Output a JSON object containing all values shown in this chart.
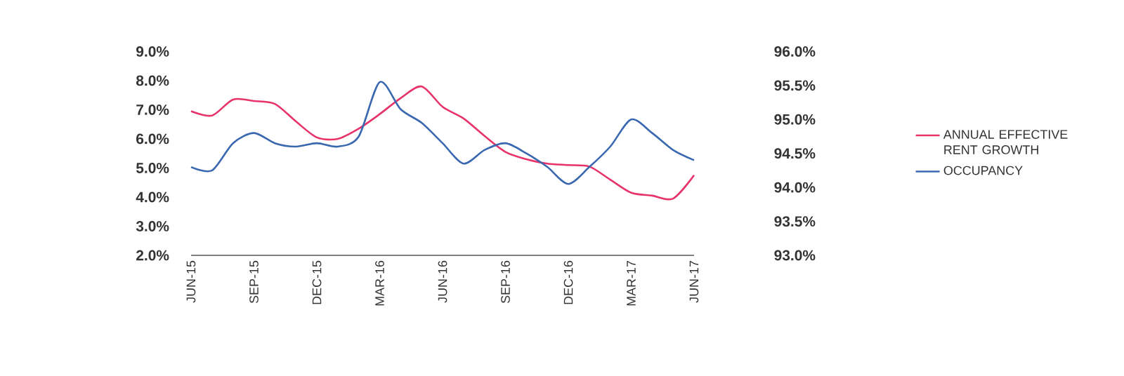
{
  "chart_data": {
    "type": "line",
    "categories": [
      "JUN-15",
      null,
      null,
      "SEP-15",
      null,
      null,
      "DEC-15",
      null,
      null,
      "MAR-16",
      null,
      null,
      "JUN-16",
      null,
      null,
      "SEP-16",
      null,
      null,
      "DEC-16",
      null,
      null,
      "MAR-17",
      null,
      null,
      "JUN-17"
    ],
    "series": [
      {
        "name": "ANNUAL EFFECTIVE RENT GROWTH",
        "color": "#e8336a",
        "values": [
          6.95,
          6.8,
          7.35,
          7.3,
          7.2,
          6.6,
          6.05,
          6.0,
          6.35,
          6.85,
          7.4,
          7.8,
          7.1,
          6.7,
          6.1,
          5.55,
          5.3,
          5.15,
          5.1,
          5.05,
          4.6,
          4.15,
          4.05,
          3.95,
          4.75
        ]
      },
      {
        "name": "OCCUPANCY",
        "color": "#3a68b0",
        "axis": "y2",
        "values": [
          94.3,
          94.25,
          94.65,
          94.8,
          94.65,
          94.6,
          94.65,
          94.6,
          94.75,
          95.55,
          95.15,
          94.95,
          94.65,
          94.35,
          94.55,
          94.65,
          94.5,
          94.3,
          94.05,
          94.3,
          94.6,
          95.0,
          94.8,
          94.55,
          94.4
        ]
      }
    ],
    "ylim": [
      2,
      9
    ],
    "yticks": [
      {
        "value": 2,
        "label": "2.0%"
      },
      {
        "value": 3,
        "label": "3.0%"
      },
      {
        "value": 4,
        "label": "4.0%"
      },
      {
        "value": 5,
        "label": "5.0%"
      },
      {
        "value": 6,
        "label": "6.0%"
      },
      {
        "value": 7,
        "label": "7.0%"
      },
      {
        "value": 8,
        "label": "8.0%"
      },
      {
        "value": 9,
        "label": "9.0%"
      }
    ],
    "y2lim": [
      93,
      96
    ],
    "y2ticks": [
      {
        "value": 93,
        "label": "93.0%"
      },
      {
        "value": 93.5,
        "label": "93.5%"
      },
      {
        "value": 94,
        "label": "94.0%"
      },
      {
        "value": 94.5,
        "label": "94.5%"
      },
      {
        "value": 95,
        "label": "95.0%"
      },
      {
        "value": 95.5,
        "label": "95.5%"
      },
      {
        "value": 96,
        "label": "96.0%"
      }
    ],
    "grid": false,
    "legend": "right",
    "marker": "none",
    "line_style": "solid"
  }
}
